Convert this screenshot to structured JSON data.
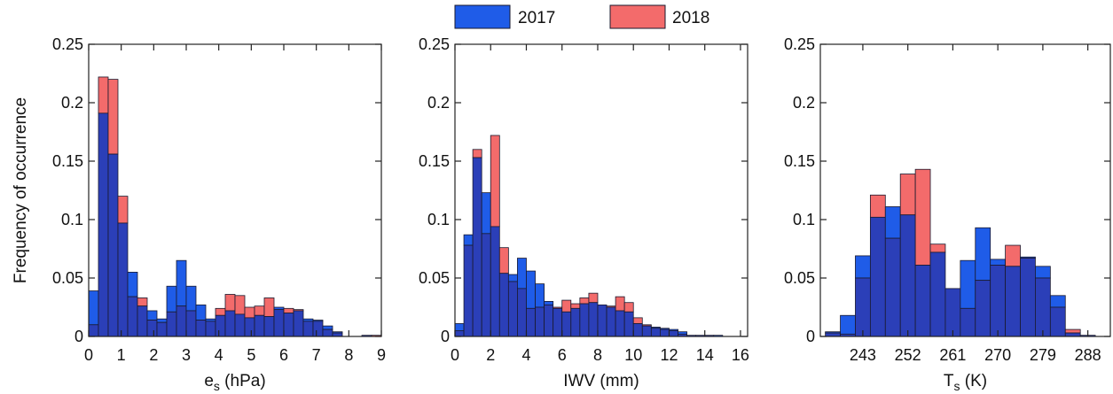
{
  "legend": {
    "placement": "top-center",
    "entries": [
      {
        "name": "2017",
        "color": "#1f5ce8"
      },
      {
        "name": "2018",
        "color": "#f36b6b"
      }
    ]
  },
  "shared_ylabel": "Frequency of occurrence",
  "colors": {
    "s2017": "#1f5ce8",
    "s2018": "#f36b6b",
    "overlap": "#2b3fb8",
    "edge": "#1a1a2e"
  },
  "chart_data": [
    {
      "type": "bar",
      "subtype": "overlapping-histogram",
      "title": "",
      "xlabel": "e",
      "xlabel_sub": "s",
      "xlabel_unit": " (hPa)",
      "ylabel": "Frequency of occurrence",
      "xlim": [
        0,
        9
      ],
      "ylim": [
        0,
        0.25
      ],
      "xticks": [
        0,
        1,
        2,
        3,
        4,
        5,
        6,
        7,
        8,
        9
      ],
      "xtick_labels": [
        "0",
        "1",
        "2",
        "3",
        "4",
        "5",
        "6",
        "7",
        "8",
        "9"
      ],
      "yticks": [
        0,
        0.05,
        0.1,
        0.15,
        0.2,
        0.25
      ],
      "ytick_labels": [
        "0",
        "0.05",
        "0.1",
        "0.15",
        "0.2",
        "0.25"
      ],
      "grid": false,
      "bin_start": 0,
      "bin_width": 0.3,
      "series": [
        {
          "name": "2017",
          "values": [
            0.039,
            0.191,
            0.156,
            0.097,
            0.055,
            0.026,
            0.022,
            0.015,
            0.043,
            0.065,
            0.043,
            0.027,
            0.015,
            0.018,
            0.022,
            0.019,
            0.016,
            0.018,
            0.017,
            0.025,
            0.02,
            0.022,
            0.015,
            0.014,
            0.009,
            0.004,
            0.0,
            0.0,
            0.001,
            0.0
          ]
        },
        {
          "name": "2018",
          "values": [
            0.01,
            0.222,
            0.22,
            0.12,
            0.034,
            0.033,
            0.014,
            0.012,
            0.021,
            0.026,
            0.022,
            0.014,
            0.013,
            0.024,
            0.036,
            0.035,
            0.025,
            0.026,
            0.033,
            0.023,
            0.024,
            0.023,
            0.013,
            0.013,
            0.006,
            0.003,
            0.0,
            0.0,
            0.001,
            0.001
          ]
        }
      ]
    },
    {
      "type": "bar",
      "subtype": "overlapping-histogram",
      "title": "",
      "xlabel": "IWV",
      "xlabel_sub": "",
      "xlabel_unit": " (mm)",
      "ylabel": "",
      "xlim": [
        0,
        16.4
      ],
      "ylim": [
        0,
        0.25
      ],
      "xticks": [
        0,
        2,
        4,
        6,
        8,
        10,
        12,
        14,
        16
      ],
      "xtick_labels": [
        "0",
        "2",
        "4",
        "6",
        "8",
        "10",
        "12",
        "14",
        "16"
      ],
      "yticks": [
        0,
        0.05,
        0.1,
        0.15,
        0.2,
        0.25
      ],
      "ytick_labels": [
        "0",
        "0.05",
        "0.1",
        "0.15",
        "0.2",
        "0.25"
      ],
      "grid": false,
      "bin_start": 0,
      "bin_width": 0.5,
      "series": [
        {
          "name": "2017",
          "values": [
            0.011,
            0.087,
            0.153,
            0.123,
            0.094,
            0.054,
            0.053,
            0.067,
            0.056,
            0.045,
            0.03,
            0.024,
            0.021,
            0.024,
            0.028,
            0.029,
            0.027,
            0.025,
            0.022,
            0.021,
            0.011,
            0.009,
            0.008,
            0.007,
            0.006,
            0.004,
            0.001,
            0.001,
            0.001,
            0.001,
            0.0,
            0.0
          ]
        },
        {
          "name": "2018",
          "values": [
            0.005,
            0.078,
            0.16,
            0.088,
            0.172,
            0.076,
            0.047,
            0.041,
            0.024,
            0.025,
            0.027,
            0.025,
            0.031,
            0.028,
            0.033,
            0.037,
            0.027,
            0.026,
            0.034,
            0.029,
            0.016,
            0.01,
            0.007,
            0.006,
            0.005,
            0.002,
            0.001,
            0.001,
            0.001,
            0.0,
            0.0,
            0.0
          ]
        }
      ]
    },
    {
      "type": "bar",
      "subtype": "overlapping-histogram",
      "title": "",
      "xlabel": "T",
      "xlabel_sub": "s",
      "xlabel_unit": " (K)",
      "ylabel": "",
      "xlim": [
        234.5,
        292.5
      ],
      "ylim": [
        0,
        0.25
      ],
      "xticks": [
        243,
        252,
        261,
        270,
        279,
        288
      ],
      "xtick_labels": [
        "243",
        "252",
        "261",
        "270",
        "279",
        "288"
      ],
      "yticks": [
        0,
        0.05,
        0.1,
        0.15,
        0.2,
        0.25
      ],
      "ytick_labels": [
        "0",
        "0.05",
        "0.1",
        "0.15",
        "0.2",
        "0.25"
      ],
      "grid": false,
      "bin_start": 235.5,
      "bin_width": 3,
      "series": [
        {
          "name": "2017",
          "values": [
            0.004,
            0.018,
            0.069,
            0.102,
            0.111,
            0.104,
            0.061,
            0.072,
            0.041,
            0.065,
            0.093,
            0.066,
            0.06,
            0.068,
            0.06,
            0.035,
            0.003,
            0.001
          ]
        },
        {
          "name": "2018",
          "values": [
            0.003,
            0.002,
            0.05,
            0.121,
            0.084,
            0.139,
            0.143,
            0.079,
            0.041,
            0.024,
            0.048,
            0.061,
            0.078,
            0.067,
            0.05,
            0.025,
            0.006,
            0.001
          ]
        }
      ]
    }
  ]
}
